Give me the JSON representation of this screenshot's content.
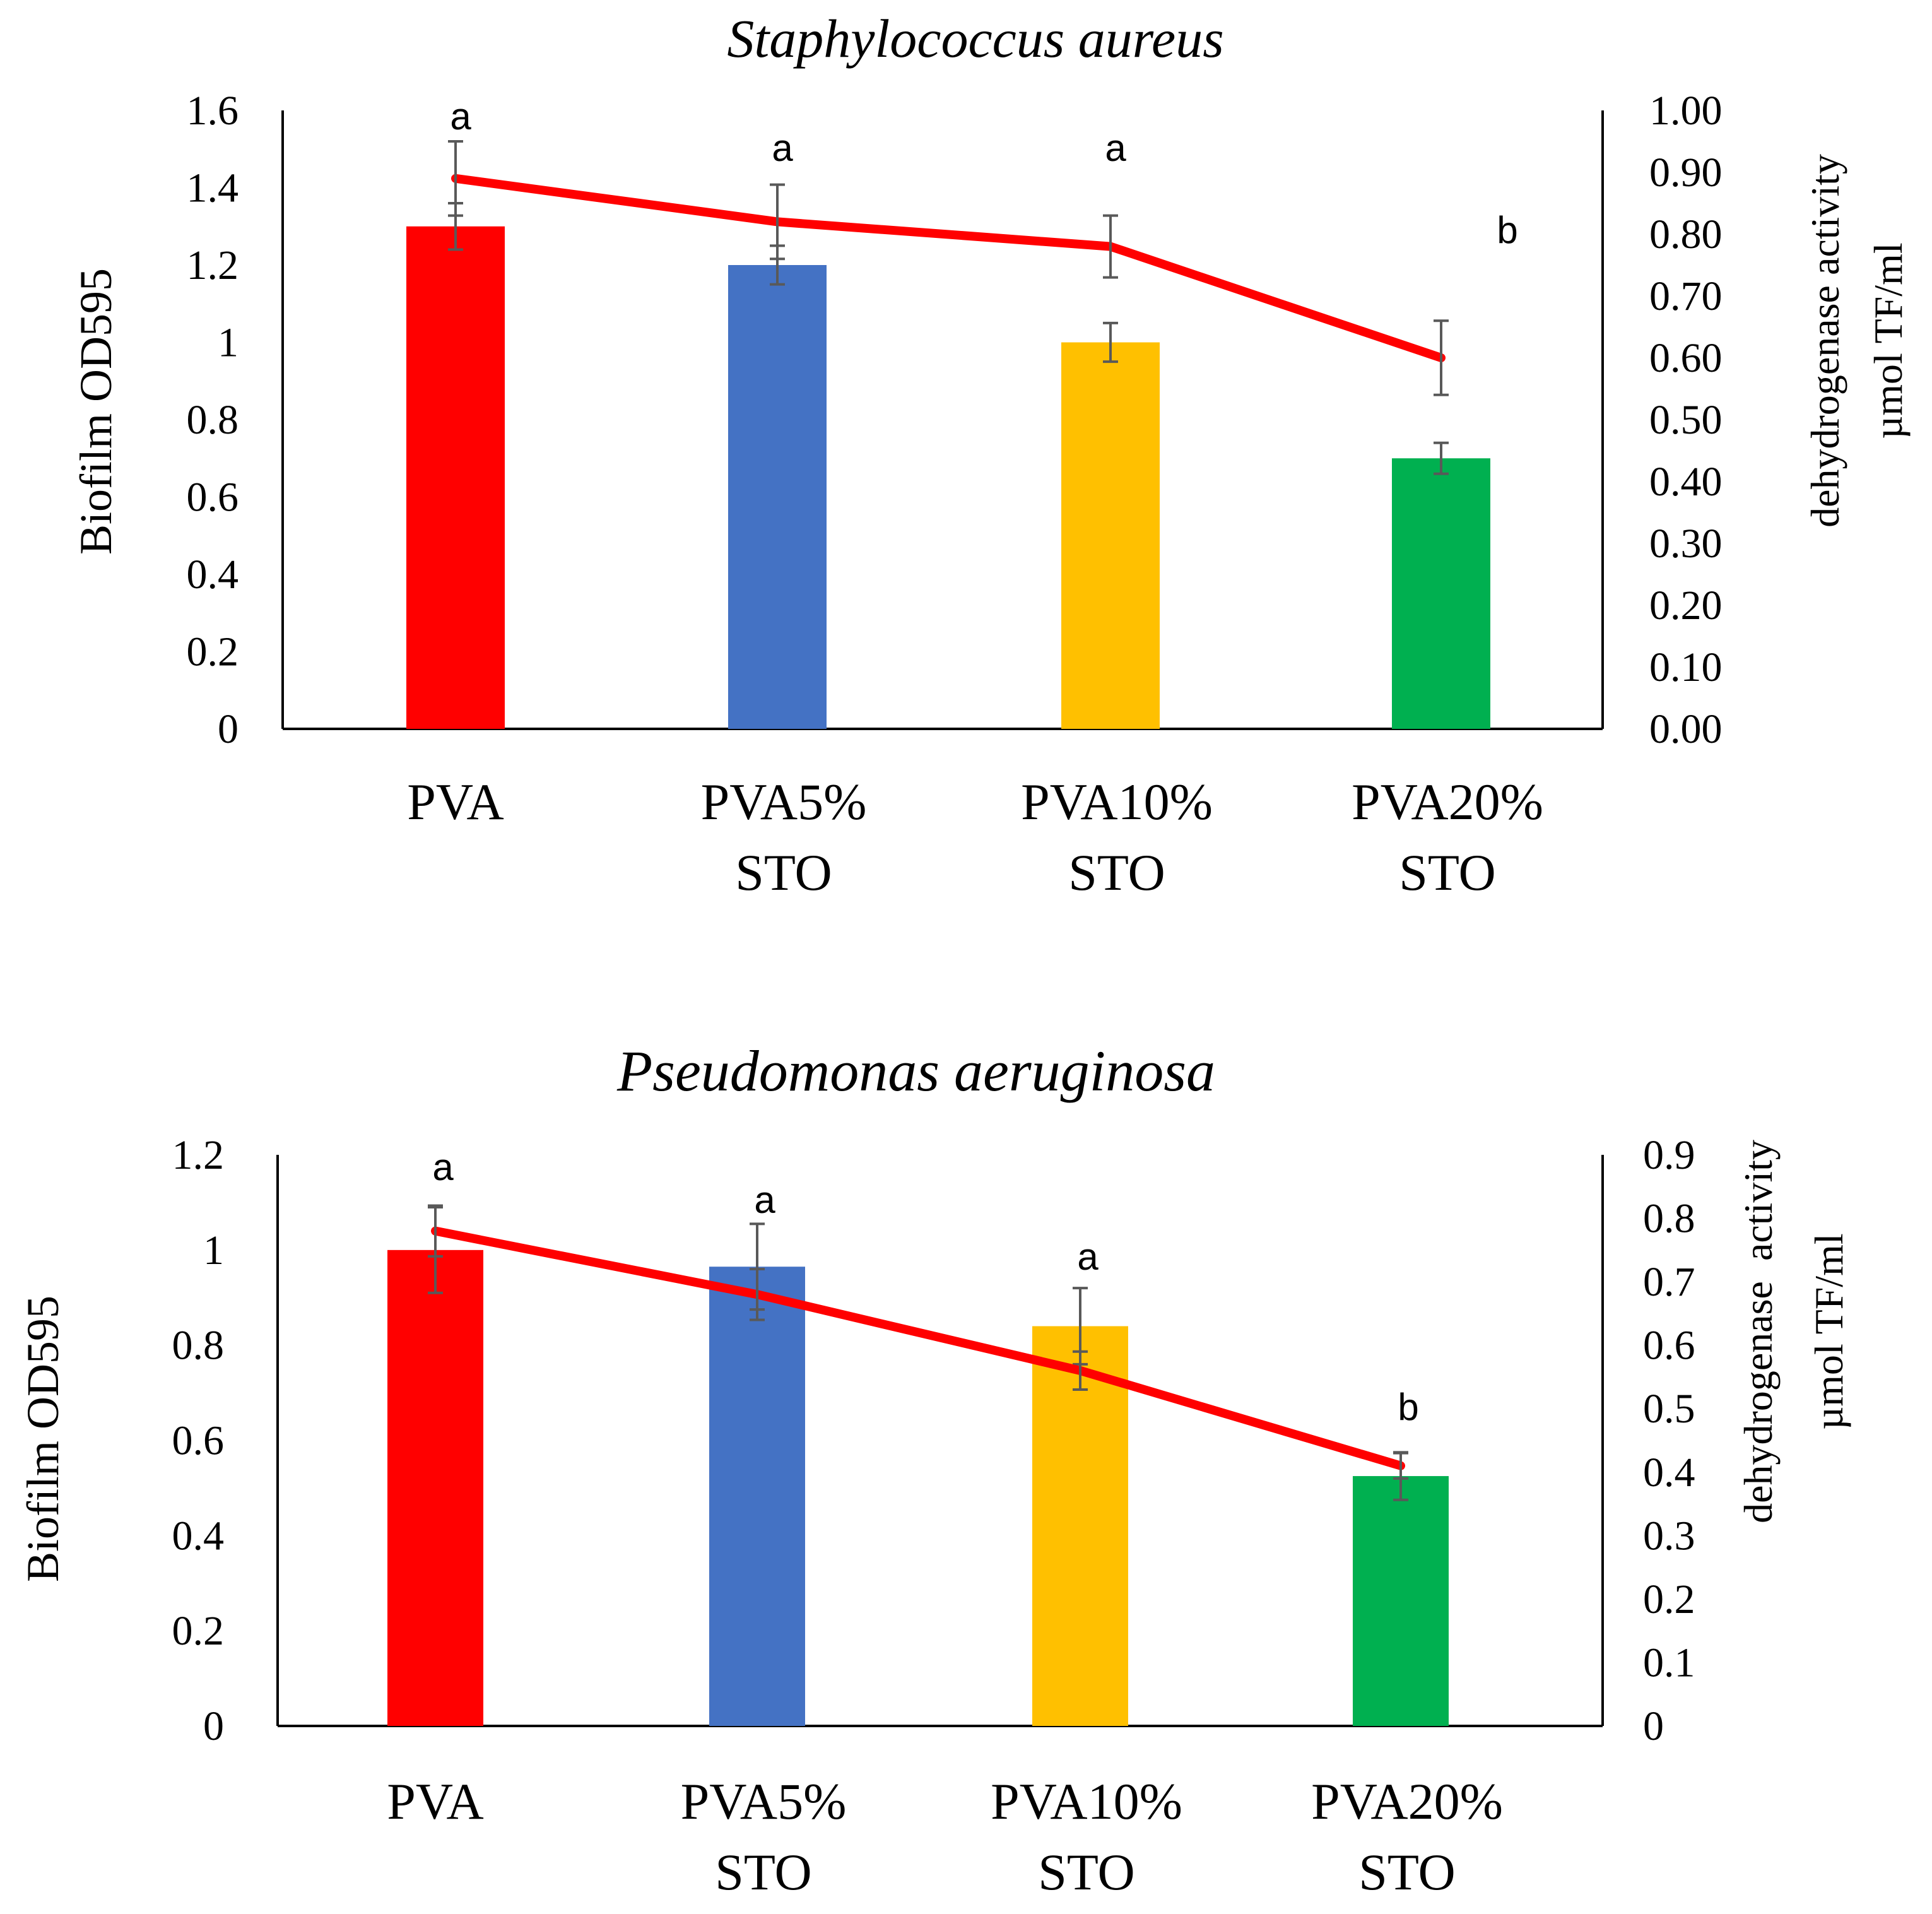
{
  "chart_data": [
    {
      "type": "bar",
      "title": "Staphylococcus aureus",
      "categories": [
        [
          "PVA"
        ],
        [
          "PVA5%",
          "STO"
        ],
        [
          "PVA10%",
          "STO"
        ],
        [
          "PVA20%",
          "STO"
        ]
      ],
      "ylabel": "Biofilm OD595",
      "y2label": [
        "dehydrogenase activity",
        "µmol TF/ml"
      ],
      "ylim": [
        0,
        1.6
      ],
      "yticks": [
        "0",
        "0.2",
        "0.4",
        "0.6",
        "0.8",
        "1",
        "1.2",
        "1.4",
        "1.6"
      ],
      "y2lim": [
        0,
        1.0
      ],
      "y2ticks": [
        "0.00",
        "0.10",
        "0.20",
        "0.30",
        "0.40",
        "0.50",
        "0.60",
        "0.70",
        "0.80",
        "0.90",
        "1.00"
      ],
      "series": [
        {
          "name": "Biofilm OD595",
          "kind": "bar",
          "axis": "left",
          "values": [
            1.3,
            1.2,
            1.0,
            0.7
          ],
          "errors": [
            0.06,
            0.05,
            0.05,
            0.04
          ],
          "colors": [
            "#ff0000",
            "#4472c4",
            "#ffc000",
            "#00b050"
          ]
        },
        {
          "name": "dehydrogenase activity",
          "kind": "line",
          "axis": "right",
          "values": [
            0.89,
            0.82,
            0.78,
            0.6
          ],
          "errors": [
            0.06,
            0.06,
            0.05,
            0.06
          ],
          "color": "#ff0000"
        }
      ],
      "annotations": [
        "a",
        "a",
        "a",
        "b"
      ]
    },
    {
      "type": "bar",
      "title": "Pseudomonas aeruginosa",
      "categories": [
        [
          "PVA"
        ],
        [
          "PVA5%",
          "STO"
        ],
        [
          "PVA10%",
          "STO"
        ],
        [
          "PVA20%",
          "STO"
        ]
      ],
      "ylabel": "Biofilm OD595",
      "y2label": [
        "dehydrogenase  activity",
        "µmol TF/ml"
      ],
      "ylim": [
        0,
        1.2
      ],
      "yticks": [
        "0",
        "0.2",
        "0.4",
        "0.6",
        "0.8",
        "1",
        "1.2"
      ],
      "y2lim": [
        0,
        0.9
      ],
      "y2ticks": [
        "0",
        "0.1",
        "0.2",
        "0.3",
        "0.4",
        "0.5",
        "0.6",
        "0.7",
        "0.8",
        "0.9"
      ],
      "series": [
        {
          "name": "Biofilm OD595",
          "kind": "bar",
          "axis": "left",
          "values": [
            1.0,
            0.965,
            0.84,
            0.525
          ],
          "errors": [
            0.09,
            0.09,
            0.08,
            0.05
          ],
          "colors": [
            "#ff0000",
            "#4472c4",
            "#ffc000",
            "#00b050"
          ]
        },
        {
          "name": "dehydrogenase activity",
          "kind": "line",
          "axis": "right",
          "values": [
            0.78,
            0.68,
            0.56,
            0.41
          ],
          "errors": [
            0.04,
            0.04,
            0.03,
            0.02
          ],
          "color": "#ff0000"
        }
      ],
      "annotations": [
        "a",
        "a",
        "a",
        "b"
      ]
    }
  ]
}
